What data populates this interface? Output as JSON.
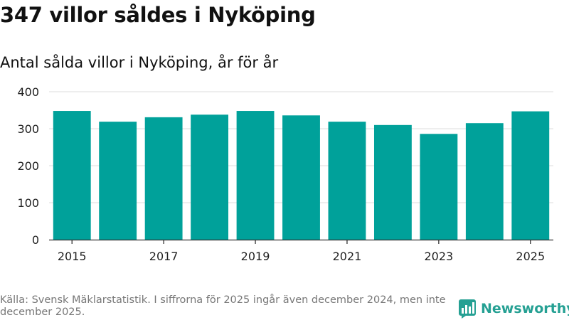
{
  "title": "347 villor såldes i Nyköping",
  "subtitle": "Antal sålda villor i Nyköping, år för år",
  "source": "Källa: Svensk Mäklarstatistik. I siffrorna för 2025 ingår även december 2024, men inte december 2025.",
  "logo": {
    "text": "Newsworthy",
    "icon": "bar-chart-icon"
  },
  "colors": {
    "bar": "#00A19A",
    "grid": "#dddddd",
    "axis": "#333333",
    "brand": "#25A093",
    "source_text": "#777777"
  },
  "chart_data": {
    "type": "bar",
    "title": "347 villor såldes i Nyköping",
    "subtitle": "Antal sålda villor i Nyköping, år för år",
    "xlabel": "",
    "ylabel": "",
    "categories": [
      "2015",
      "2016",
      "2017",
      "2018",
      "2019",
      "2020",
      "2021",
      "2022",
      "2023",
      "2024",
      "2025"
    ],
    "values": [
      348,
      319,
      331,
      338,
      348,
      336,
      319,
      310,
      286,
      315,
      347
    ],
    "ylim": [
      0,
      400
    ],
    "yticks": [
      0,
      100,
      200,
      300,
      400
    ],
    "xtick_labels": [
      "2015",
      "2017",
      "2019",
      "2021",
      "2023",
      "2025"
    ],
    "grid": true,
    "legend": "none"
  }
}
